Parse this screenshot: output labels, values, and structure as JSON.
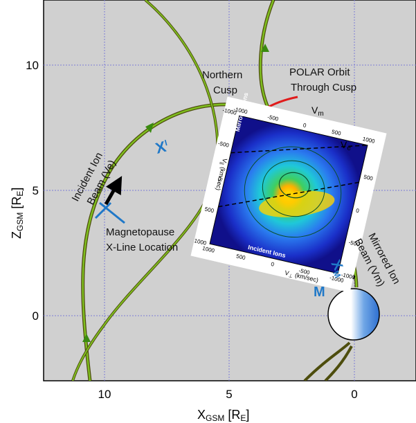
{
  "axes": {
    "xlabel_main": "X",
    "xlabel_sub": "GSM",
    "xlabel_unit_open": " [R",
    "xlabel_unit_sub": "E",
    "xlabel_unit_close": "]",
    "ylabel_main": "Z",
    "ylabel_sub": "GSM",
    "ylabel_unit_open": " [R",
    "ylabel_unit_sub": "E",
    "ylabel_unit_close": "]",
    "x_ticks": [
      "10",
      "5",
      "0"
    ],
    "y_ticks": [
      "10",
      "5",
      "0"
    ],
    "x_range": [
      12.4,
      -2.4
    ],
    "y_range": [
      -2.6,
      12.4
    ],
    "grid": true
  },
  "annotations": {
    "northern_cusp_line1": "Northern",
    "northern_cusp_line2": "Cusp",
    "polar_orbit_line1": "POLAR Orbit",
    "polar_orbit_line2": "Through Cusp",
    "incident_line1": "Incident Ion",
    "incident_line2": "Beam (Ve)",
    "magnetopause_line1": "Magnetopause",
    "magnetopause_line2": "X-Line Location",
    "mirrored_line1": "Mirrored Ion",
    "mirrored_line2": "Beam (Vm)",
    "xi_main": "X",
    "xi_sub": "I",
    "xm_main": "X",
    "xm_sub": "M",
    "m_label": "M",
    "vm_main": "V",
    "vm_sub": "m",
    "ve_main": "V",
    "ve_sub": "e"
  },
  "inset": {
    "label_mirrored": "Mirrored Ions",
    "label_incident": "Incident Ions",
    "v_perp_label": "V",
    "v_perp_sub": "⊥",
    "v_perp_unit": "(km/sec)",
    "v_par_label": "V",
    "v_par_sub": "||",
    "v_par_unit": "(km/sec)",
    "ticks_top": [
      "-1000",
      "-500",
      "0",
      "500",
      "1000"
    ],
    "ticks_left": [
      "-1000",
      "-500",
      "0",
      "500",
      "1000"
    ],
    "ticks_bottom": [
      "1000",
      "500",
      "0",
      "-500",
      "-1000"
    ],
    "ticks_right": [
      "500",
      "0",
      "-500",
      "-1000"
    ]
  },
  "colors": {
    "plot_background": "#d0d0d0",
    "grid": "#7b7bd6",
    "field_line_green": "#7fbf1f",
    "field_line_dark": "#4d4d0d",
    "polar_orbit": "#e01b1b",
    "marker_blue": "#1f78c8",
    "beam_black": "#000000"
  }
}
